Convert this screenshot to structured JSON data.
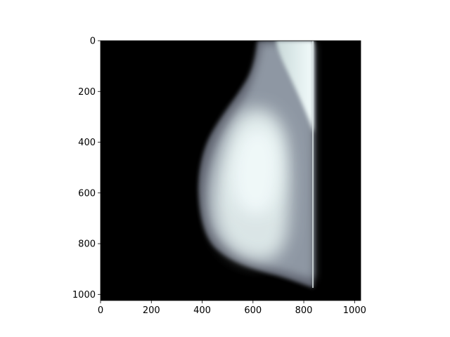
{
  "chart_data": {
    "type": "heatmap",
    "description_kind": "image",
    "colormap": "bone",
    "image_shape": [
      1024,
      1024
    ],
    "xlim": [
      0,
      1024
    ],
    "ylim": [
      1024,
      0
    ],
    "xticks": [
      0,
      200,
      400,
      600,
      800,
      1000
    ],
    "yticks": [
      0,
      200,
      400,
      600,
      800,
      1000
    ],
    "xtick_labels": [
      "0",
      "200",
      "400",
      "600",
      "800",
      "1000"
    ],
    "ytick_labels": [
      "0",
      "200",
      "400",
      "600",
      "800",
      "1000"
    ],
    "title": "",
    "xlabel": "",
    "ylabel": "",
    "grid": false
  }
}
